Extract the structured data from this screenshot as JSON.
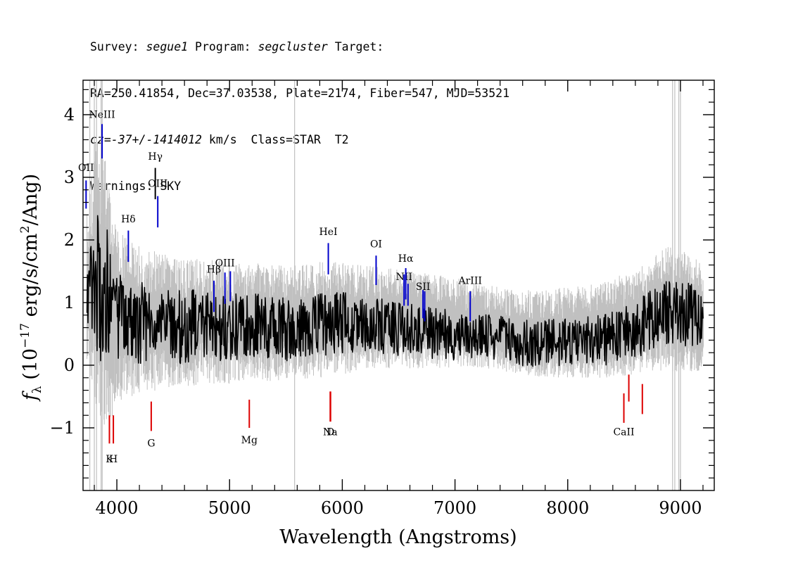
{
  "header": {
    "line1": {
      "survey_label": "Survey: ",
      "survey": "segue1",
      "program_label": " Program: ",
      "program": "segcluster",
      "target_label": " Target:"
    },
    "line2": "RA=250.41854, Dec=37.03538, Plate=2174, Fiber=547, MJD=53521",
    "line3": {
      "cz": "cz=-37+/-1414012",
      "rest": " km/s  Class=STAR  T2"
    },
    "line4": "Warnings: SKY"
  },
  "chart_data": {
    "type": "line",
    "title": "",
    "xlabel": "Wavelength (Angstroms)",
    "ylabel": "f_λ (10^-17 erg/s/cm²/Ang)",
    "ylabel_parts": {
      "f": "f",
      "sub": "λ",
      "pre": " (10",
      "exp": "−17",
      "mid": " erg/s/cm",
      "exp2": "2",
      "post": "/Ang)"
    },
    "xlim": [
      3700,
      9300
    ],
    "ylim": [
      -2.0,
      4.55
    ],
    "xticks": [
      4000,
      5000,
      6000,
      7000,
      8000,
      9000
    ],
    "xtick_labels": [
      "4000",
      "5000",
      "6000",
      "7000",
      "8000",
      "9000"
    ],
    "yticks": [
      -1,
      0,
      1,
      2,
      3,
      4
    ],
    "ytick_labels": [
      "−1",
      "0",
      "1",
      "2",
      "3",
      "4"
    ],
    "grid": false,
    "series": [
      {
        "role": "error",
        "color": "#c0c0c0",
        "x": [
          3750,
          3800,
          3850,
          3900,
          3950,
          4000,
          4100,
          4200,
          4300,
          4400,
          4500,
          4600,
          4700,
          4800,
          4900,
          5000,
          5200,
          5400,
          5600,
          5800,
          6000,
          6200,
          6400,
          6600,
          6800,
          7000,
          7200,
          7400,
          7600,
          7800,
          8000,
          8200,
          8400,
          8600,
          8800,
          8900,
          9000,
          9100,
          9200
        ],
        "lo": [
          0.1,
          -0.6,
          -0.8,
          -1.0,
          -0.9,
          -0.6,
          -0.5,
          -0.5,
          -0.45,
          -0.4,
          -0.4,
          -0.35,
          -0.35,
          -0.3,
          -0.3,
          -0.3,
          -0.25,
          -0.25,
          -0.25,
          -0.2,
          -0.15,
          -0.1,
          -0.05,
          -0.05,
          -0.05,
          -0.05,
          -0.05,
          -0.1,
          -0.15,
          -0.2,
          -0.2,
          -0.2,
          -0.2,
          -0.15,
          -0.1,
          -0.1,
          -0.1,
          -0.1,
          -0.1
        ],
        "hi": [
          2.6,
          3.6,
          3.6,
          3.3,
          2.6,
          2.2,
          2.0,
          1.9,
          1.85,
          1.8,
          1.75,
          1.75,
          1.7,
          1.7,
          1.7,
          1.65,
          1.65,
          1.6,
          1.6,
          1.65,
          1.65,
          1.6,
          1.55,
          1.5,
          1.45,
          1.4,
          1.3,
          1.25,
          1.2,
          1.2,
          1.25,
          1.3,
          1.4,
          1.5,
          1.8,
          1.9,
          1.85,
          1.75,
          1.6
        ]
      },
      {
        "role": "flux",
        "color": "#000000",
        "x": [
          3750,
          3800,
          3850,
          3900,
          3950,
          4000,
          4100,
          4200,
          4300,
          4400,
          4500,
          4600,
          4700,
          4800,
          4900,
          5000,
          5200,
          5400,
          5600,
          5800,
          6000,
          6200,
          6400,
          6600,
          6800,
          7000,
          7200,
          7400,
          7600,
          7800,
          8000,
          8200,
          8400,
          8600,
          8800,
          8900,
          9000,
          9100,
          9200
        ],
        "y": [
          1.2,
          1.4,
          1.3,
          1.1,
          0.9,
          0.8,
          0.72,
          0.68,
          0.62,
          0.65,
          0.62,
          0.6,
          0.65,
          0.62,
          0.6,
          0.6,
          0.62,
          0.6,
          0.55,
          0.65,
          0.68,
          0.65,
          0.62,
          0.55,
          0.52,
          0.48,
          0.45,
          0.42,
          0.35,
          0.35,
          0.38,
          0.4,
          0.45,
          0.55,
          0.8,
          0.85,
          0.85,
          0.8,
          0.7
        ]
      }
    ],
    "emission_lines": [
      {
        "label": "OII",
        "x": 3727,
        "y0": 2.5,
        "y1": 2.95,
        "label_y": 3.1,
        "color": "#0000cc"
      },
      {
        "label": "NeIII",
        "x": 3869,
        "y0": 3.3,
        "y1": 3.85,
        "label_y": 3.95,
        "color": "#0000cc"
      },
      {
        "label": "Hδ",
        "x": 4102,
        "y0": 1.65,
        "y1": 2.15,
        "label_y": 2.28,
        "color": "#0000cc"
      },
      {
        "label": "Hγ",
        "x": 4341,
        "y0": 2.65,
        "y1": 3.15,
        "label_y": 3.28,
        "color": "#000000"
      },
      {
        "label": "OIII",
        "x": 4363,
        "y0": 2.2,
        "y1": 2.7,
        "label_y": 2.85,
        "color": "#0000cc"
      },
      {
        "label": "Hβ",
        "x": 4861,
        "y0": 0.85,
        "y1": 1.35,
        "label_y": 1.48,
        "color": "#0000cc"
      },
      {
        "label": "OIII",
        "x": 4959,
        "y0": 0.98,
        "y1": 1.48,
        "label_y": 1.58,
        "color": "#0000cc"
      },
      {
        "label": "OIII",
        "x": 5007,
        "y0": 1.02,
        "y1": 1.5,
        "label_y": 1.58,
        "color": "#0000cc"
      },
      {
        "label": "HeI",
        "x": 5876,
        "y0": 1.45,
        "y1": 1.95,
        "label_y": 2.08,
        "color": "#0000cc"
      },
      {
        "label": "OI",
        "x": 6300,
        "y0": 1.28,
        "y1": 1.75,
        "label_y": 1.88,
        "color": "#0000cc"
      },
      {
        "label": "NII",
        "x": 6548,
        "y0": 0.95,
        "y1": 1.45,
        "label_y": 1.36,
        "color": "#0000cc"
      },
      {
        "label": "Hα",
        "x": 6563,
        "y0": 1.05,
        "y1": 1.55,
        "label_y": 1.65,
        "color": "#0000cc"
      },
      {
        "label": "NII",
        "x": 6583,
        "y0": 0.95,
        "y1": 1.3,
        "label_y": 1.36,
        "color": "#0000cc"
      },
      {
        "label": "SII",
        "x": 6716,
        "y0": 0.75,
        "y1": 1.2,
        "label_y": 1.2,
        "color": "#0000cc"
      },
      {
        "label": "SII",
        "x": 6731,
        "y0": 0.7,
        "y1": 1.18,
        "label_y": 1.2,
        "color": "#0000cc"
      },
      {
        "label": "ArIII",
        "x": 7135,
        "y0": 0.7,
        "y1": 1.18,
        "label_y": 1.3,
        "color": "#0000cc"
      }
    ],
    "absorption_lines": [
      {
        "label": "K",
        "x": 3934,
        "y0": -1.25,
        "y1": -0.8,
        "label_y": -1.55,
        "color": "#dd0000"
      },
      {
        "label": "H",
        "x": 3969,
        "y0": -1.25,
        "y1": -0.8,
        "label_y": -1.55,
        "color": "#dd0000"
      },
      {
        "label": "G",
        "x": 4305,
        "y0": -1.05,
        "y1": -0.58,
        "label_y": -1.3,
        "color": "#dd0000"
      },
      {
        "label": "Mg",
        "x": 5175,
        "y0": -1.0,
        "y1": -0.55,
        "label_y": -1.25,
        "color": "#dd0000"
      },
      {
        "label": "Na",
        "x": 5893,
        "y0": -0.9,
        "y1": -0.42,
        "label_y": -1.12,
        "color": "#dd0000"
      },
      {
        "label": "D",
        "x": 5896,
        "y0": -0.9,
        "y1": -0.42,
        "label_y": -1.12,
        "color": "#dd0000"
      },
      {
        "label": "CaII",
        "x": 8498,
        "y0": -0.92,
        "y1": -0.45,
        "label_y": -1.12,
        "color": "#dd0000"
      },
      {
        "label": "CaII",
        "x": 8542,
        "y0": -0.58,
        "y1": -0.15,
        "label_y": -1.12,
        "color": "#dd0000"
      },
      {
        "label": "CaII",
        "x": 8662,
        "y0": -0.78,
        "y1": -0.3,
        "label_y": -1.12,
        "color": "#dd0000"
      }
    ],
    "axis_color": "#000000"
  }
}
